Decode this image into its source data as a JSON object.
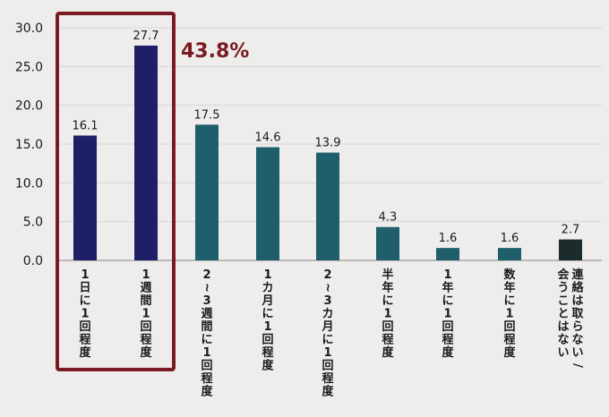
{
  "chart_data": {
    "type": "bar",
    "categories": [
      "1日に1回程度",
      "1週間1回程度",
      "2~3週間に1回程度",
      "1カ月に1回程度",
      "2~3カ月に1回程度",
      "半年に1回程度",
      "1年に1回程度",
      "数年に1回程度",
      "連絡は取らない/会うことはない"
    ],
    "category_lines": [
      [
        "1日に1回程度"
      ],
      [
        "1週間1回程度"
      ],
      [
        "2~3週間に1回程度"
      ],
      [
        "1カ月に1回程度"
      ],
      [
        "2~3カ月に1回程度"
      ],
      [
        "半年に1回程度"
      ],
      [
        "1年に1回程度"
      ],
      [
        "数年に1回程度"
      ],
      [
        "連絡は取らない/",
        "会うことはない"
      ]
    ],
    "values": [
      16.1,
      27.7,
      17.5,
      14.6,
      13.9,
      4.3,
      1.6,
      1.6,
      2.7
    ],
    "value_labels": [
      "16.1",
      "27.7",
      "17.5",
      "14.6",
      "13.9",
      "4.3",
      "1.6",
      "1.6",
      "2.7"
    ],
    "bar_colors": [
      "#1e1f66",
      "#1e1f66",
      "#1f5e6b",
      "#1f5e6b",
      "#1f5e6b",
      "#1f5e6b",
      "#1f5e6b",
      "#1f5e6b",
      "#1c2b2c"
    ],
    "y_ticks": [
      "0.0",
      "5.0",
      "10.0",
      "15.0",
      "20.0",
      "25.0",
      "30.0"
    ],
    "ylim": [
      0,
      30
    ],
    "grid": true,
    "title": "",
    "xlabel": "",
    "ylabel": "",
    "highlight": {
      "label": "43.8%",
      "color": "#7a1a22",
      "categories": [
        0,
        1
      ]
    }
  }
}
